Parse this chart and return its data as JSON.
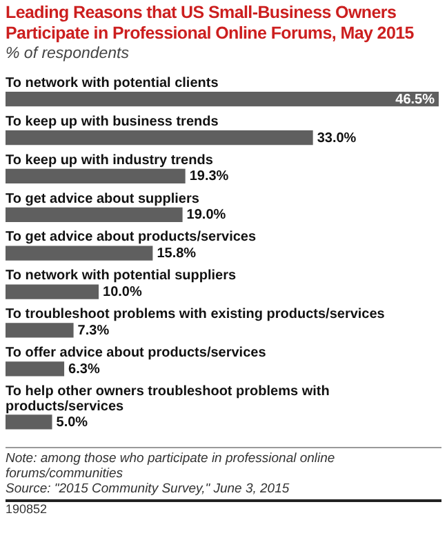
{
  "chart_data": {
    "type": "bar",
    "orientation": "horizontal",
    "title": "Leading Reasons that US Small-Business Owners Participate in Professional Online Forums, May 2015",
    "subtitle": "% of respondents",
    "categories": [
      "To network with potential clients",
      "To keep up with business trends",
      "To keep up with industry trends",
      "To get advice about suppliers",
      "To get advice about products/services",
      "To network with potential suppliers",
      "To troubleshoot problems with existing products/services",
      "To offer advice about products/services",
      "To help other owners troubleshoot problems with products/services"
    ],
    "values": [
      46.5,
      33.0,
      19.3,
      19.0,
      15.8,
      10.0,
      7.3,
      6.3,
      5.0
    ],
    "value_labels": [
      "46.5%",
      "33.0%",
      "19.3%",
      "19.0%",
      "15.8%",
      "10.0%",
      "7.3%",
      "6.3%",
      "5.0%"
    ],
    "color": "#5f5f5f",
    "annotations": [
      "Note: among those who participate in professional online forums/communities",
      "Source: \"2015 Community Survey,\" June 3, 2015",
      "190852"
    ]
  }
}
